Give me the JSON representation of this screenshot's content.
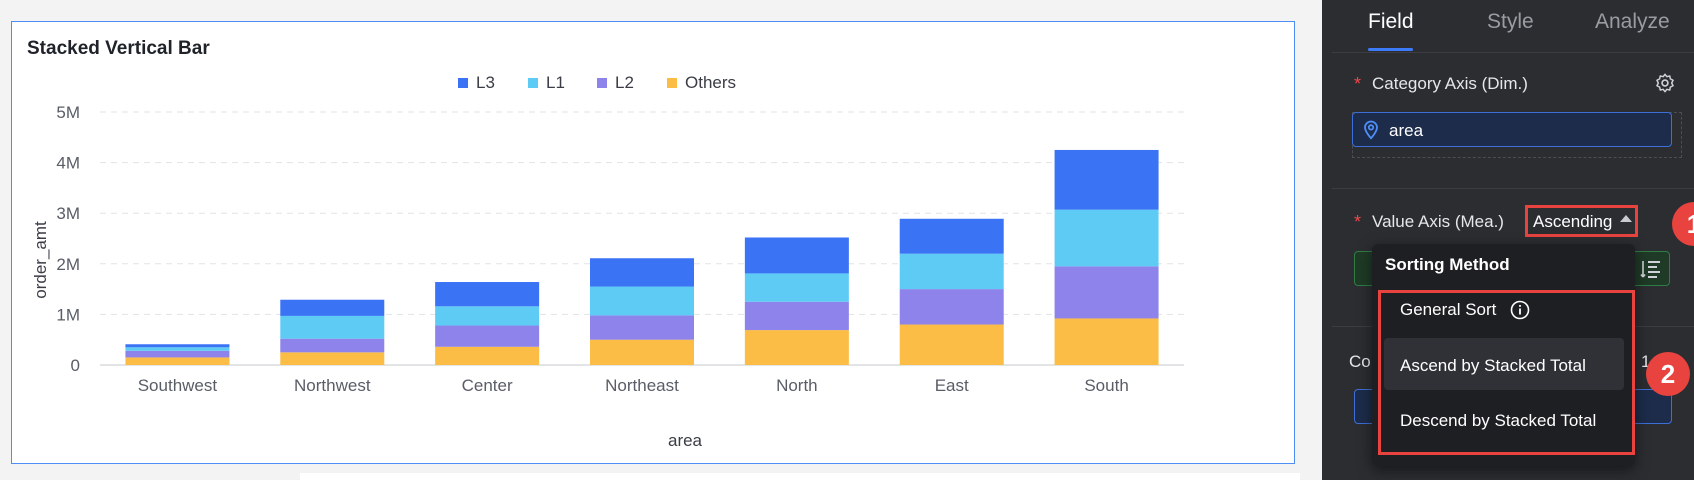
{
  "chart_data": {
    "type": "bar",
    "stacked": true,
    "title": "Stacked Vertical Bar",
    "xlabel": "area",
    "ylabel": "order_amt",
    "categories": [
      "Southwest",
      "Northwest",
      "Center",
      "Northeast",
      "North",
      "East",
      "South"
    ],
    "ylim": [
      0,
      5000000
    ],
    "yticks": [
      "0",
      "1M",
      "2M",
      "3M",
      "4M",
      "5M"
    ],
    "ytick_values": [
      0,
      1000000,
      2000000,
      3000000,
      4000000,
      5000000
    ],
    "legend_position": "top",
    "grid": true,
    "series": [
      {
        "name": "Others",
        "color": "#fbbd45",
        "values": [
          150000,
          250000,
          360000,
          500000,
          690000,
          800000,
          920000
        ]
      },
      {
        "name": "L2",
        "color": "#8d83ea",
        "values": [
          130000,
          270000,
          420000,
          480000,
          560000,
          700000,
          1030000
        ]
      },
      {
        "name": "L1",
        "color": "#5ecbf5",
        "values": [
          70000,
          450000,
          380000,
          570000,
          560000,
          700000,
          1120000
        ]
      },
      {
        "name": "L3",
        "color": "#3b73f5",
        "values": [
          60000,
          320000,
          480000,
          560000,
          710000,
          690000,
          1180000
        ]
      }
    ],
    "legend_order": [
      "L3",
      "L1",
      "L2",
      "Others"
    ]
  },
  "panel": {
    "tabs": [
      "Field",
      "Style",
      "Analyze"
    ],
    "active_tab": "Field",
    "category_axis_label": "Category Axis (Dim.)",
    "category_field": "area",
    "value_axis_label": "Value Axis (Mea.)",
    "sort_value": "Ascending",
    "color_label_stub": "Co",
    "color_count_stub": "1"
  },
  "badges": {
    "one": "1",
    "two": "2"
  },
  "sort_dropdown": {
    "title": "Sorting Method",
    "options": [
      "General Sort",
      "Ascend by Stacked Total",
      "Descend by Stacked Total"
    ],
    "highlighted": "Ascend by Stacked Total"
  },
  "colors": {
    "accent": "#3d7bfa",
    "highlight_red": "#e8433f",
    "panel_bg": "#2b2d31"
  },
  "icons": [
    "gear-icon",
    "location-pin-icon",
    "caret-up-icon",
    "info-icon",
    "order-icon"
  ]
}
